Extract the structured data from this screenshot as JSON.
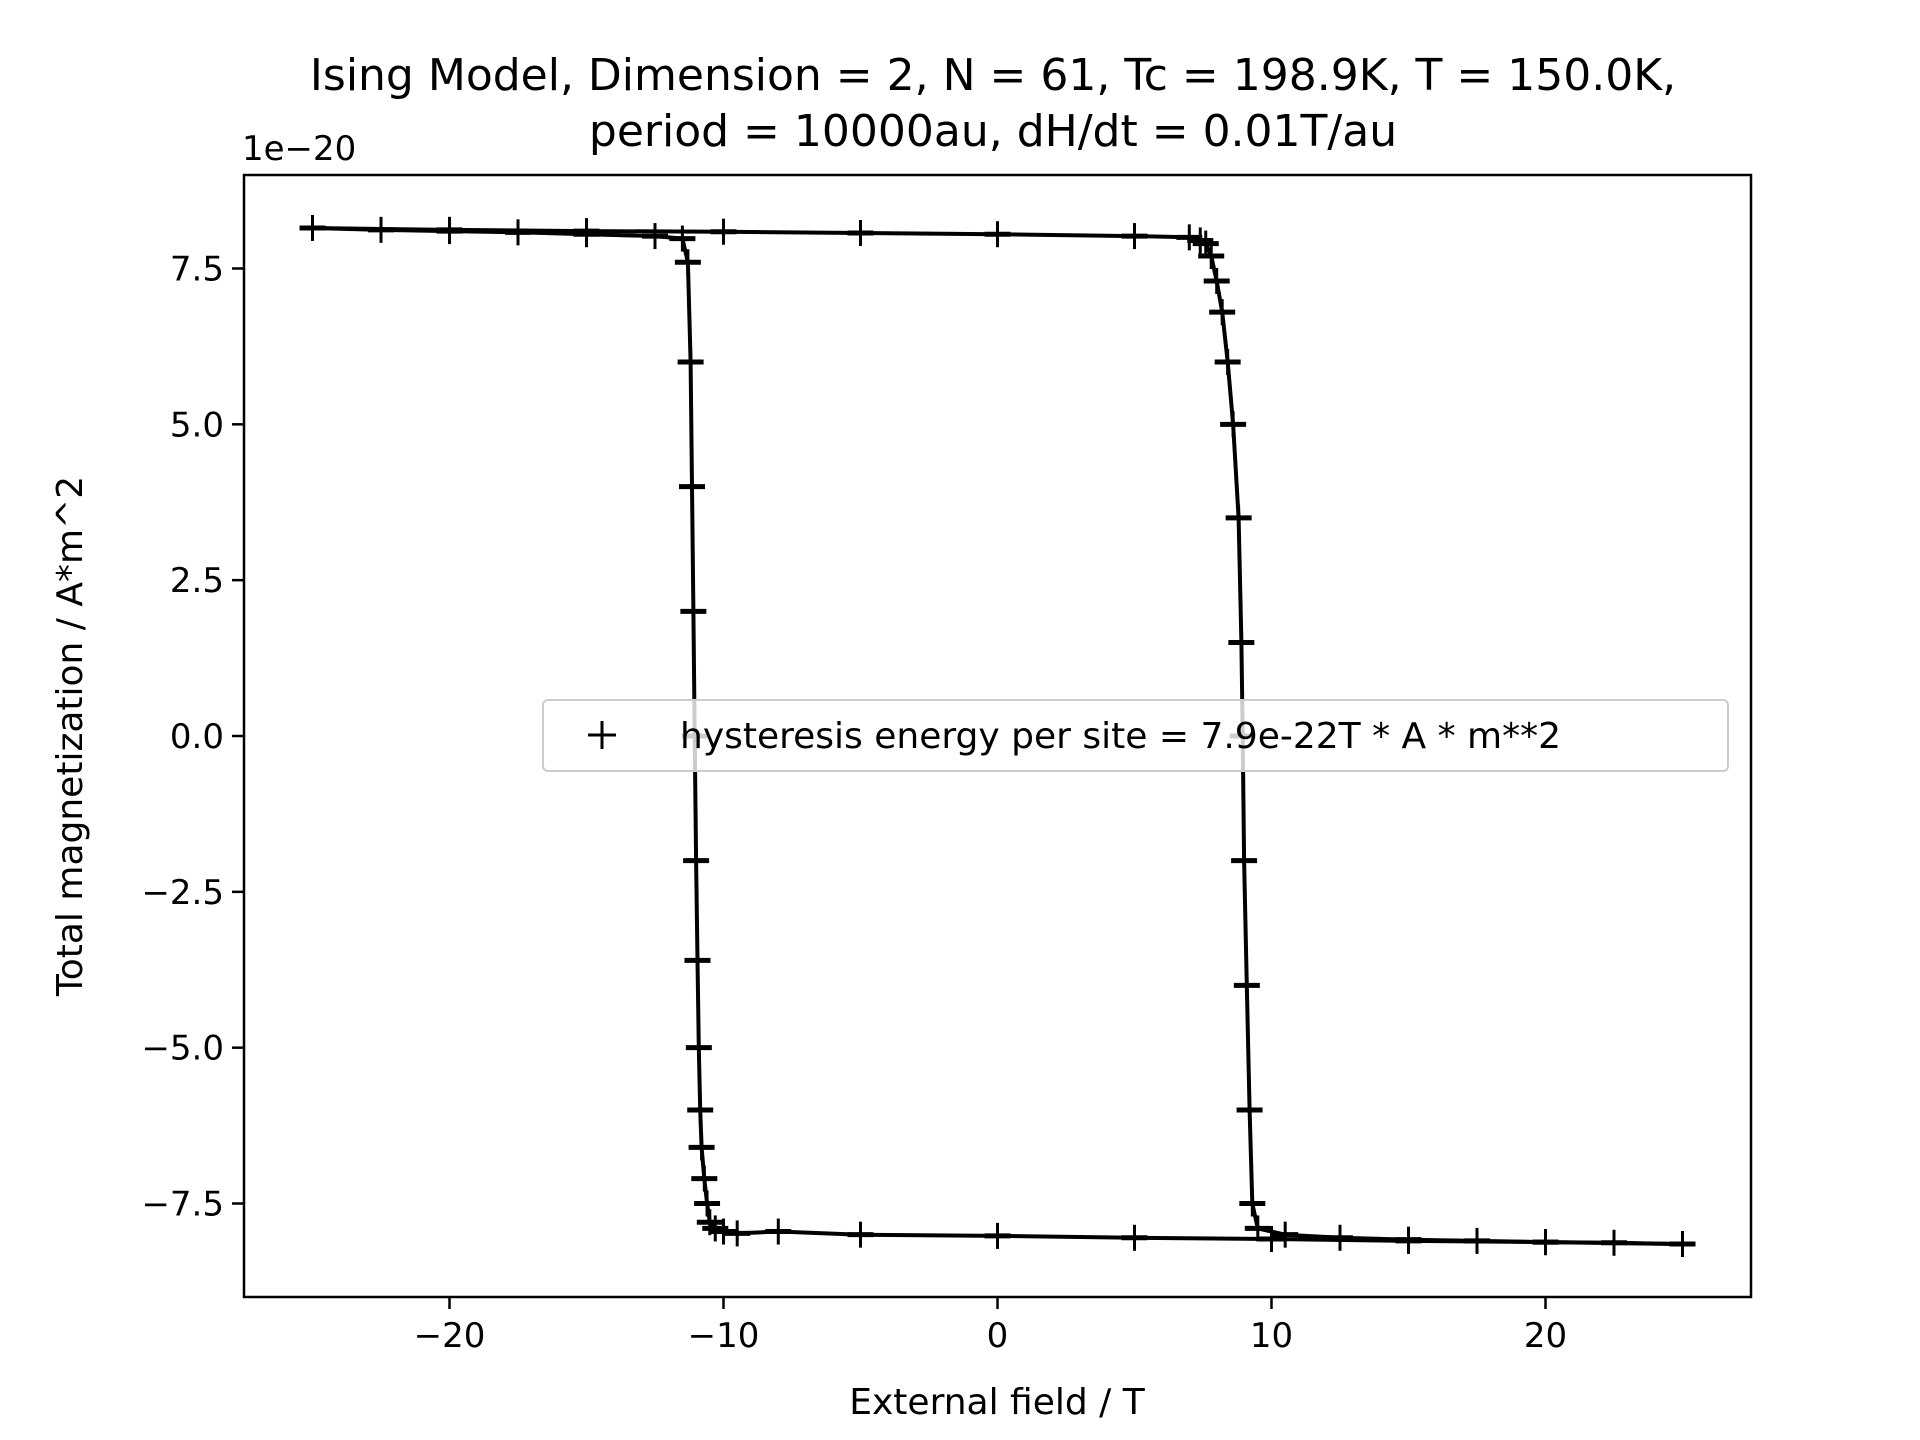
{
  "chart_data": {
    "type": "scatter",
    "title_lines": [
      "Ising Model, Dimension = 2, N = 61, Tc = 198.9K, T = 150.0K,",
      "period = 10000au, dH/dt = 0.01T/au"
    ],
    "xlabel": "External field / T",
    "ylabel": "Total magnetization / A*m^2",
    "y_offset_label": "1e−20",
    "y_scale": 1e-20,
    "xlim": [
      -27.5,
      27.5
    ],
    "ylim": [
      -9.0,
      9.0
    ],
    "x_ticks": [
      -20,
      -10,
      0,
      10,
      20
    ],
    "x_tick_labels": [
      "−20",
      "−10",
      "0",
      "10",
      "20"
    ],
    "y_ticks": [
      7.5,
      5.0,
      2.5,
      0.0,
      -2.5,
      -5.0,
      -7.5
    ],
    "y_tick_labels": [
      "7.5",
      "5.0",
      "2.5",
      "0.0",
      "−2.5",
      "−5.0",
      "−7.5"
    ],
    "grid": false,
    "legend": {
      "position": "center-right",
      "marker": "+",
      "entry": "hysteresis energy per site = 7.9e-22T * A * m**2"
    },
    "marker": "+",
    "color": "#000000",
    "series": [
      {
        "branch": "upper (field decreasing)",
        "x": [
          -25.0,
          -22.5,
          -20.0,
          -17.5,
          -15.0,
          -12.5,
          -11.5,
          -11.3,
          -11.2,
          -11.15,
          -11.1,
          -11.05,
          -11.0,
          -10.95,
          -10.9,
          -10.85,
          -10.8,
          -10.7,
          -10.6,
          -10.5,
          -10.3,
          -10.0,
          -9.5,
          -8.0,
          -5.0,
          0.0,
          5.0,
          10.0,
          15.0,
          20.0,
          25.0
        ],
        "y": [
          8.15,
          8.12,
          8.1,
          8.08,
          8.05,
          8.02,
          7.98,
          7.6,
          6.0,
          4.0,
          2.0,
          0.0,
          -2.0,
          -3.6,
          -5.0,
          -6.0,
          -6.6,
          -7.1,
          -7.5,
          -7.8,
          -7.9,
          -7.95,
          -7.98,
          -7.95,
          -8.0,
          -8.02,
          -8.05,
          -8.07,
          -8.1,
          -8.12,
          -8.15
        ]
      },
      {
        "branch": "lower (field increasing)",
        "x": [
          25.0,
          22.5,
          20.0,
          17.5,
          15.0,
          12.5,
          10.5,
          9.5,
          9.3,
          9.2,
          9.1,
          9.0,
          8.95,
          8.9,
          8.8,
          8.6,
          8.4,
          8.2,
          8.0,
          7.8,
          7.6,
          7.4,
          7.0,
          5.0,
          0.0,
          -5.0,
          -10.0,
          -15.0,
          -20.0,
          -25.0
        ],
        "y": [
          -8.15,
          -8.13,
          -8.12,
          -8.1,
          -8.08,
          -8.05,
          -8.0,
          -7.9,
          -7.5,
          -6.0,
          -4.0,
          -2.0,
          0.0,
          1.5,
          3.5,
          5.0,
          6.0,
          6.8,
          7.3,
          7.7,
          7.9,
          7.95,
          8.0,
          8.02,
          8.05,
          8.07,
          8.09,
          8.1,
          8.12,
          8.15
        ]
      }
    ]
  }
}
